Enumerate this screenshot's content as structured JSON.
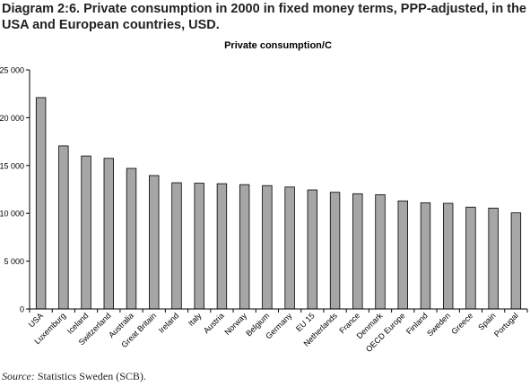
{
  "header": {
    "diagram_title": "Diagram 2:6. Private consumption in 2000 in fixed money terms, PPP-adjusted, in the USA and European countries, USD."
  },
  "footer": {
    "source_label": "Source:",
    "source_text": "Statistics Sweden (SCB)."
  },
  "chart_data": {
    "type": "bar",
    "title": "Private consumption/C",
    "xlabel": "",
    "ylabel": "",
    "ylim": [
      0,
      25000
    ],
    "yticks": [
      0,
      5000,
      10000,
      15000,
      20000,
      25000
    ],
    "ytick_labels": [
      "0",
      "5 000",
      "10 000",
      "15 000",
      "20 000",
      "25 000"
    ],
    "grid": false,
    "legend": "none",
    "bar_color": "#a6a6a6",
    "categories": [
      "USA",
      "Luxemburg",
      "Iceland",
      "Switzerland",
      "Australia",
      "Great Britain",
      "Ireland",
      "Italy",
      "Austria",
      "Norway",
      "Belgium",
      "Germany",
      "EU 15",
      "Netherlands",
      "France",
      "Denmark",
      "OECD Europe",
      "Finland",
      "Sweden",
      "Greece",
      "Spain",
      "Portugal"
    ],
    "values": [
      22100,
      17050,
      16000,
      15750,
      14700,
      13950,
      13200,
      13150,
      13100,
      13000,
      12900,
      12750,
      12450,
      12200,
      12050,
      11950,
      11300,
      11100,
      11050,
      10650,
      10550,
      10050
    ]
  }
}
